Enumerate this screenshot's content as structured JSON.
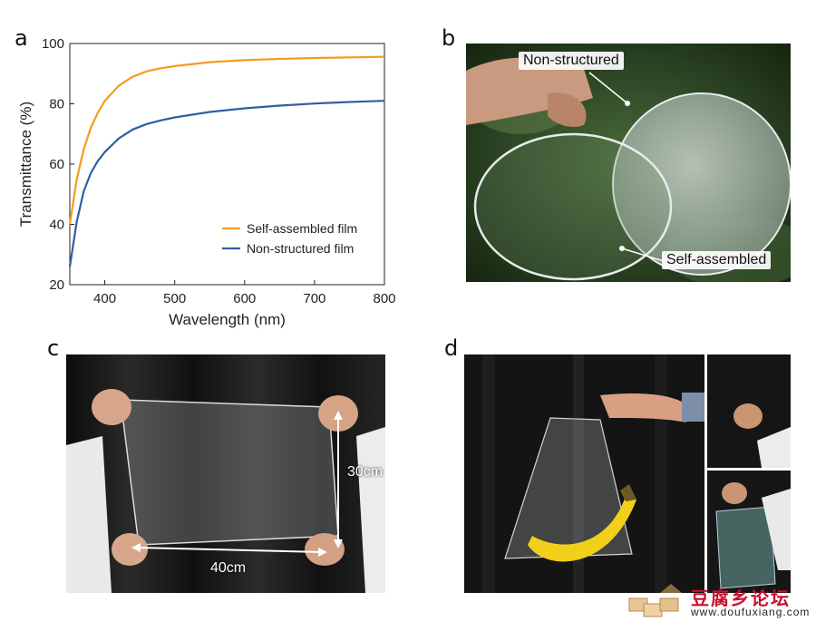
{
  "panels": {
    "a": "a",
    "b": "b",
    "c": "c",
    "d": "d"
  },
  "chart_data": {
    "type": "line",
    "xlabel": "Wavelength (nm)",
    "ylabel": "Transmittance (%)",
    "xlim": [
      350,
      800
    ],
    "ylim": [
      20,
      100
    ],
    "xticks": [
      400,
      500,
      600,
      700,
      800
    ],
    "yticks": [
      20,
      40,
      60,
      80,
      100
    ],
    "grid": false,
    "legend_position": "bottom-right",
    "series": [
      {
        "name": "Self-assembled film",
        "color": "#f39c1f",
        "x": [
          350,
          360,
          370,
          380,
          390,
          400,
          420,
          440,
          460,
          480,
          500,
          550,
          600,
          650,
          700,
          750,
          800
        ],
        "y": [
          40,
          55,
          65,
          72,
          77,
          81,
          86,
          89,
          90.8,
          91.8,
          92.5,
          93.8,
          94.5,
          94.9,
          95.2,
          95.4,
          95.6
        ]
      },
      {
        "name": "Non-structured film",
        "color": "#2e5fa3",
        "x": [
          350,
          360,
          370,
          380,
          390,
          400,
          420,
          440,
          460,
          480,
          500,
          550,
          600,
          650,
          700,
          750,
          800
        ],
        "y": [
          26,
          41,
          51,
          57,
          61,
          64,
          68.5,
          71.5,
          73.3,
          74.5,
          75.5,
          77.3,
          78.5,
          79.4,
          80.1,
          80.6,
          81
        ]
      }
    ]
  },
  "photo_b": {
    "label_top": "Non-structured",
    "label_bottom": "Self-assembled"
  },
  "photo_c": {
    "width_label": "40cm",
    "height_label": "30cm"
  },
  "watermark": {
    "title": "豆腐乡论坛",
    "url": "www.doufuxiang.com"
  }
}
